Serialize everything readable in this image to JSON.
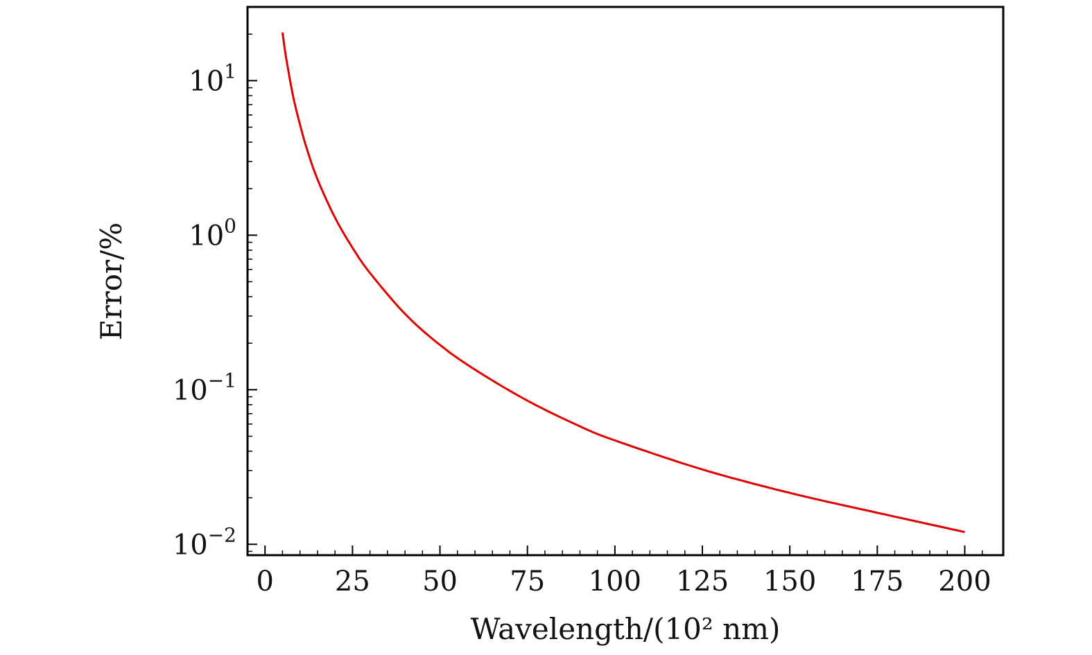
{
  "chart_data": {
    "type": "line",
    "xlabel": "Wavelength/(10² nm)",
    "ylabel": "Error/%",
    "xlim": [
      -5,
      211
    ],
    "ylim": [
      0.0085,
      30
    ],
    "yscale": "log",
    "xticks": [
      0,
      25,
      50,
      75,
      100,
      125,
      150,
      175,
      200
    ],
    "xticklabels": [
      "0",
      "25",
      "50",
      "75",
      "100",
      "125",
      "150",
      "175",
      "200"
    ],
    "yticks": [
      0.01,
      0.1,
      1,
      10
    ],
    "yticklabels": [
      {
        "base": "10",
        "exp": "−2"
      },
      {
        "base": "10",
        "exp": "−1"
      },
      {
        "base": "10",
        "exp": "0"
      },
      {
        "base": "10",
        "exp": "1"
      }
    ],
    "grid": false,
    "line_color": "#e00000",
    "series": [
      {
        "x": [
          5,
          6,
          8,
          10,
          12,
          15,
          20,
          25,
          30,
          40,
          50,
          60,
          75,
          90,
          100,
          125,
          150,
          175,
          200
        ],
        "y": [
          20.5,
          14.2,
          8.0,
          5.2,
          3.6,
          2.3,
          1.3,
          0.83,
          0.57,
          0.31,
          0.195,
          0.135,
          0.085,
          0.058,
          0.047,
          0.0305,
          0.0215,
          0.016,
          0.012
        ]
      }
    ]
  }
}
